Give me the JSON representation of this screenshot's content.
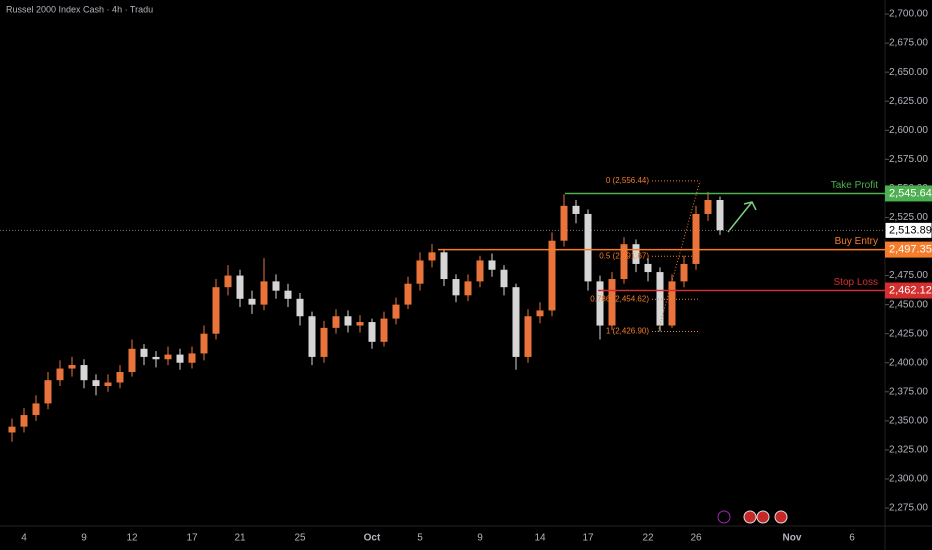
{
  "chart_data": {
    "type": "candlestick",
    "title": "Russel 2000 Index Cash · 4h · Tradu",
    "categories": [
      null,
      "4",
      null,
      null,
      null,
      null,
      "9",
      null,
      null,
      null,
      "12",
      null,
      null,
      null,
      null,
      "17",
      null,
      null,
      null,
      "21",
      null,
      null,
      null,
      null,
      "25",
      null,
      null,
      null,
      null,
      null,
      "Oct",
      null,
      null,
      null,
      "5",
      null,
      null,
      null,
      null,
      "9",
      null,
      null,
      null,
      null,
      "14",
      null,
      null,
      null,
      "17",
      null,
      null,
      null,
      null,
      "22",
      null,
      null,
      null,
      "26",
      null,
      null,
      null,
      null,
      null,
      null,
      null,
      "Nov",
      null,
      null,
      null,
      null,
      "6"
    ],
    "open": [
      2340,
      2345,
      2355,
      2365,
      2385,
      2395,
      2398,
      2385,
      2380,
      2383,
      2392,
      2412,
      2405,
      2403,
      2407,
      2400,
      2408,
      2425,
      2465,
      2475,
      2455,
      2450,
      2470,
      2462,
      2455,
      2440,
      2405,
      2430,
      2440,
      2432,
      2435,
      2418,
      2438,
      2450,
      2468,
      2488,
      2495,
      2472,
      2458,
      2470,
      2488,
      2480,
      2465,
      2405,
      2440,
      2445,
      2505,
      2535,
      2528,
      2470,
      2432,
      2472,
      2502,
      2485,
      2478,
      2432,
      2470,
      2485,
      2528,
      2540,
      null,
      null,
      null,
      null,
      null,
      null,
      null,
      null,
      null,
      null,
      null
    ],
    "high": [
      2352,
      2361,
      2372,
      2392,
      2402,
      2405,
      2403,
      2390,
      2390,
      2398,
      2420,
      2416,
      2410,
      2414,
      2412,
      2414,
      2432,
      2472,
      2484,
      2480,
      2462,
      2490,
      2476,
      2468,
      2460,
      2444,
      2436,
      2446,
      2445,
      2441,
      2438,
      2444,
      2456,
      2474,
      2495,
      2502,
      2498,
      2476,
      2476,
      2492,
      2494,
      2484,
      2468,
      2446,
      2452,
      2512,
      2545,
      2540,
      2532,
      2475,
      2478,
      2508,
      2506,
      2490,
      2482,
      2476,
      2492,
      2535,
      2547,
      2543,
      null,
      null,
      null,
      null,
      null,
      null,
      null,
      null,
      null,
      null,
      null
    ],
    "low": [
      2332,
      2340,
      2350,
      2360,
      2380,
      2388,
      2378,
      2372,
      2375,
      2378,
      2388,
      2398,
      2396,
      2398,
      2394,
      2395,
      2402,
      2420,
      2458,
      2448,
      2442,
      2445,
      2455,
      2448,
      2432,
      2398,
      2400,
      2425,
      2426,
      2426,
      2412,
      2414,
      2433,
      2446,
      2462,
      2482,
      2466,
      2452,
      2453,
      2465,
      2474,
      2458,
      2394,
      2400,
      2434,
      2440,
      2500,
      2520,
      2462,
      2420,
      2428,
      2468,
      2478,
      2470,
      2427,
      2430,
      2465,
      2480,
      2522,
      2510,
      null,
      null,
      null,
      null,
      null,
      null,
      null,
      null,
      null,
      null,
      null
    ],
    "close": [
      2345,
      2355,
      2365,
      2385,
      2395,
      2398,
      2385,
      2380,
      2383,
      2392,
      2412,
      2405,
      2403,
      2407,
      2400,
      2408,
      2425,
      2465,
      2475,
      2455,
      2450,
      2470,
      2462,
      2455,
      2440,
      2405,
      2430,
      2440,
      2432,
      2435,
      2418,
      2438,
      2450,
      2468,
      2488,
      2495,
      2472,
      2458,
      2470,
      2488,
      2480,
      2465,
      2405,
      2440,
      2445,
      2505,
      2535,
      2528,
      2470,
      2432,
      2472,
      2502,
      2485,
      2478,
      2432,
      2470,
      2485,
      2528,
      2540,
      2514,
      null,
      null,
      null,
      null,
      null,
      null,
      null,
      null,
      null,
      null,
      null
    ],
    "up_color": "#e8743b",
    "down_color": "#d6d6d6",
    "ylim": [
      2264.7,
      2705.2
    ],
    "yticks": [
      {
        "value": 2700,
        "label": "2,700.00"
      },
      {
        "value": 2675,
        "label": "2,675.00"
      },
      {
        "value": 2650,
        "label": "2,650.00"
      },
      {
        "value": 2625,
        "label": "2,625.00"
      },
      {
        "value": 2600,
        "label": "2,600.00"
      },
      {
        "value": 2575,
        "label": "2,575.00"
      },
      {
        "value": 2550,
        "label": "2,550.00"
      },
      {
        "value": 2525,
        "label": "2,525.00"
      },
      {
        "value": 2500,
        "label": "2,500.00"
      },
      {
        "value": 2475,
        "label": "2,475.00"
      },
      {
        "value": 2450,
        "label": "2,450.00"
      },
      {
        "value": 2425,
        "label": "2,425.00"
      },
      {
        "value": 2400,
        "label": "2,400.00"
      },
      {
        "value": 2375,
        "label": "2,375.00"
      },
      {
        "value": 2350,
        "label": "2,350.00"
      },
      {
        "value": 2325,
        "label": "2,325.00"
      },
      {
        "value": 2300,
        "label": "2,300.00"
      },
      {
        "value": 2275,
        "label": "2,275.00"
      }
    ],
    "last_price": {
      "value": 2513.89,
      "label": "2,513.89"
    },
    "levels": [
      {
        "name": "Take Profit",
        "value": 2545.64,
        "value_label": "2,545.64",
        "color": "#4caf50"
      },
      {
        "name": "Buy Entry",
        "value": 2497.35,
        "value_label": "2,497.35",
        "color": "#f57c2a"
      },
      {
        "name": "Stop Loss",
        "value": 2462.12,
        "value_label": "2,462.12",
        "color": "#d32f2f"
      }
    ],
    "fib_levels": [
      {
        "label": "0 (2,556.44)",
        "value": 2556.44
      },
      {
        "label": "0.5 (2,491.67)",
        "value": 2491.67
      },
      {
        "label": "0.786 (2,454.62)",
        "value": 2454.62
      },
      {
        "label": "1 (2,426.90)",
        "value": 2426.9
      }
    ]
  }
}
